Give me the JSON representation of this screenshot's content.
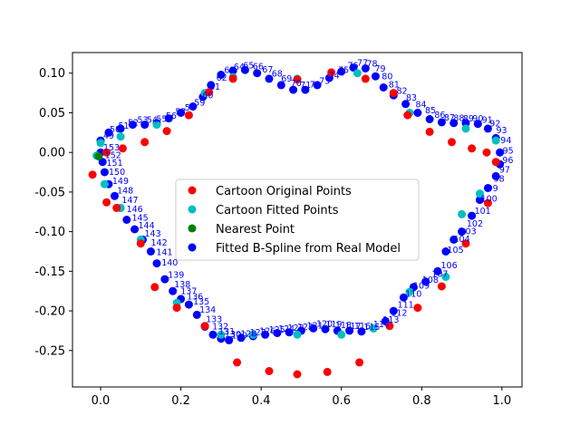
{
  "chart_data": {
    "type": "scatter",
    "title": "",
    "xlabel": "",
    "ylabel": "",
    "xlim": [
      -0.07,
      1.05
    ],
    "ylim": [
      -0.296,
      0.126
    ],
    "xticks": [
      "0.0",
      "0.2",
      "0.4",
      "0.6",
      "0.8",
      "1.0"
    ],
    "xtick_values": [
      0.0,
      0.2,
      0.4,
      0.6,
      0.8,
      1.0
    ],
    "yticks": [
      "0.10",
      "0.05",
      "0.00",
      "-0.05",
      "-0.10",
      "-0.15",
      "-0.20",
      "-0.25"
    ],
    "ytick_values": [
      0.1,
      0.05,
      0.0,
      -0.05,
      -0.1,
      -0.15,
      -0.2,
      -0.25
    ],
    "grid": false,
    "legend_position": "center",
    "series": [
      {
        "name": "Cartoon Original Points",
        "color": "#ff0000",
        "points": [
          [
            -0.02,
            -0.028
          ],
          [
            0.015,
            -0.063
          ],
          [
            0.04,
            -0.07
          ],
          [
            0.1,
            -0.115
          ],
          [
            0.135,
            -0.17
          ],
          [
            0.19,
            -0.196
          ],
          [
            0.26,
            -0.219
          ],
          [
            0.34,
            -0.265
          ],
          [
            0.42,
            -0.276
          ],
          [
            0.49,
            -0.28
          ],
          [
            0.565,
            -0.277
          ],
          [
            0.645,
            -0.265
          ],
          [
            0.72,
            -0.219
          ],
          [
            0.79,
            -0.196
          ],
          [
            0.85,
            -0.169
          ],
          [
            0.91,
            -0.115
          ],
          [
            0.965,
            -0.064
          ],
          [
            0.985,
            -0.012
          ],
          [
            0.962,
            0.0
          ],
          [
            0.925,
            0.005
          ],
          [
            0.875,
            0.013
          ],
          [
            0.82,
            0.026
          ],
          [
            0.765,
            0.047
          ],
          [
            0.73,
            0.075
          ],
          [
            0.66,
            0.093
          ],
          [
            0.575,
            0.101
          ],
          [
            0.49,
            0.092
          ],
          [
            0.33,
            0.093
          ],
          [
            0.27,
            0.076
          ],
          [
            0.22,
            0.047
          ],
          [
            0.165,
            0.027
          ],
          [
            0.11,
            0.013
          ],
          [
            0.055,
            0.005
          ],
          [
            0.015,
            0.0
          ]
        ]
      },
      {
        "name": "Cartoon Fitted Points",
        "color": "#00bfbf",
        "points": [
          [
            -0.01,
            -0.004
          ],
          [
            0.01,
            -0.04
          ],
          [
            0.05,
            -0.07
          ],
          [
            0.1,
            -0.11
          ],
          [
            0.19,
            -0.19
          ],
          [
            0.3,
            -0.23
          ],
          [
            0.38,
            -0.23
          ],
          [
            0.49,
            -0.23
          ],
          [
            0.6,
            -0.23
          ],
          [
            0.68,
            -0.222
          ],
          [
            0.77,
            -0.176
          ],
          [
            0.86,
            -0.157
          ],
          [
            0.9,
            -0.078
          ],
          [
            0.945,
            -0.052
          ],
          [
            0.985,
            0.015
          ],
          [
            0.91,
            0.03
          ],
          [
            0.77,
            0.05
          ],
          [
            0.64,
            0.1
          ],
          [
            0.49,
            0.093
          ],
          [
            0.33,
            0.095
          ],
          [
            0.26,
            0.075
          ],
          [
            0.14,
            0.035
          ],
          [
            0.05,
            0.02
          ],
          [
            0.0,
            0.012
          ]
        ]
      },
      {
        "name": "Nearest Point",
        "color": "#008000",
        "points": [
          [
            -0.005,
            -0.005
          ]
        ]
      },
      {
        "name": "Fitted B-Spline from Real Model",
        "color": "#0000ff",
        "labels_from": 49,
        "labels_to": 153,
        "points": [
          [
            0.0,
            0.015
          ],
          [
            0.02,
            0.025
          ],
          [
            0.05,
            0.03
          ],
          [
            0.08,
            0.035
          ],
          [
            0.11,
            0.035
          ],
          [
            0.14,
            0.037
          ],
          [
            0.17,
            0.043
          ],
          [
            0.2,
            0.05
          ],
          [
            0.23,
            0.058
          ],
          [
            0.255,
            0.07
          ],
          [
            0.275,
            0.085
          ],
          [
            0.3,
            0.098
          ],
          [
            0.33,
            0.103
          ],
          [
            0.36,
            0.104
          ],
          [
            0.39,
            0.1
          ],
          [
            0.42,
            0.093
          ],
          [
            0.45,
            0.085
          ],
          [
            0.48,
            0.079
          ],
          [
            0.51,
            0.079
          ],
          [
            0.54,
            0.085
          ],
          [
            0.57,
            0.094
          ],
          [
            0.6,
            0.102
          ],
          [
            0.63,
            0.107
          ],
          [
            0.66,
            0.106
          ],
          [
            0.685,
            0.096
          ],
          [
            0.705,
            0.082
          ],
          [
            0.73,
            0.072
          ],
          [
            0.76,
            0.061
          ],
          [
            0.79,
            0.05
          ],
          [
            0.82,
            0.042
          ],
          [
            0.85,
            0.038
          ],
          [
            0.88,
            0.037
          ],
          [
            0.91,
            0.037
          ],
          [
            0.94,
            0.036
          ],
          [
            0.965,
            0.03
          ],
          [
            0.985,
            0.018
          ],
          [
            0.995,
            0.0
          ],
          [
            0.995,
            -0.015
          ],
          [
            0.985,
            -0.03
          ],
          [
            0.965,
            -0.045
          ],
          [
            0.945,
            -0.06
          ],
          [
            0.925,
            -0.08
          ],
          [
            0.9,
            -0.1
          ],
          [
            0.88,
            -0.11
          ],
          [
            0.86,
            -0.125
          ],
          [
            0.84,
            -0.15
          ],
          [
            0.81,
            -0.163
          ],
          [
            0.78,
            -0.17
          ],
          [
            0.755,
            -0.183
          ],
          [
            0.73,
            -0.2
          ],
          [
            0.71,
            -0.213
          ],
          [
            0.68,
            -0.222
          ],
          [
            0.65,
            -0.226
          ],
          [
            0.62,
            -0.225
          ],
          [
            0.59,
            -0.225
          ],
          [
            0.56,
            -0.223
          ],
          [
            0.53,
            -0.222
          ],
          [
            0.5,
            -0.225
          ],
          [
            0.47,
            -0.227
          ],
          [
            0.44,
            -0.228
          ],
          [
            0.41,
            -0.23
          ],
          [
            0.38,
            -0.232
          ],
          [
            0.35,
            -0.234
          ],
          [
            0.32,
            -0.237
          ],
          [
            0.3,
            -0.235
          ],
          [
            0.28,
            -0.23
          ],
          [
            0.26,
            -0.22
          ],
          [
            0.24,
            -0.205
          ],
          [
            0.22,
            -0.192
          ],
          [
            0.2,
            -0.185
          ],
          [
            0.18,
            -0.175
          ],
          [
            0.16,
            -0.16
          ],
          [
            0.14,
            -0.14
          ],
          [
            0.125,
            -0.125
          ],
          [
            0.105,
            -0.11
          ],
          [
            0.085,
            -0.097
          ],
          [
            0.065,
            -0.085
          ],
          [
            0.05,
            -0.07
          ],
          [
            0.035,
            -0.055
          ],
          [
            0.02,
            -0.04
          ],
          [
            0.01,
            -0.025
          ],
          [
            0.005,
            -0.012
          ],
          [
            0.0,
            0.0
          ]
        ]
      }
    ]
  }
}
